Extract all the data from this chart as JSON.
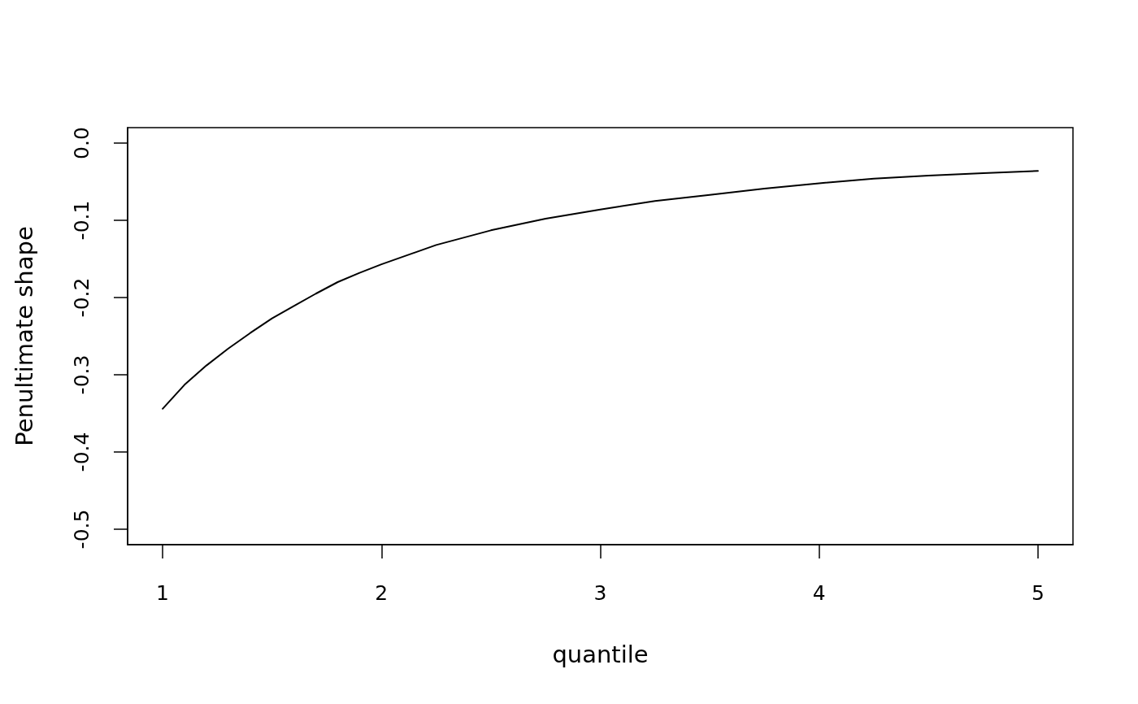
{
  "chart_data": {
    "type": "line",
    "xlabel": "quantile",
    "ylabel": "Penultimate shape",
    "x": [
      1,
      1.1,
      1.2,
      1.3,
      1.4,
      1.5,
      1.6,
      1.7,
      1.8,
      1.9,
      2,
      2.25,
      2.5,
      2.75,
      3,
      3.25,
      3.5,
      3.75,
      4,
      4.25,
      4.5,
      4.75,
      5
    ],
    "series": [
      {
        "color": "#000000",
        "values": [
          -0.344,
          -0.313,
          -0.288,
          -0.266,
          -0.246,
          -0.227,
          -0.211,
          -0.195,
          -0.18,
          -0.168,
          -0.157,
          -0.132,
          -0.113,
          -0.098,
          -0.086,
          -0.075,
          -0.067,
          -0.059,
          -0.052,
          -0.046,
          -0.042,
          -0.039,
          -0.036
        ]
      }
    ],
    "xlim": [
      0.84,
      5.16
    ],
    "xticks": [
      1,
      2,
      3,
      4,
      5
    ],
    "ylim": [
      -0.52,
      0.02
    ],
    "yticks": [
      {
        "value": 0,
        "label": "0.0"
      },
      -0.1,
      -0.2,
      -0.3,
      -0.4,
      -0.5
    ]
  }
}
